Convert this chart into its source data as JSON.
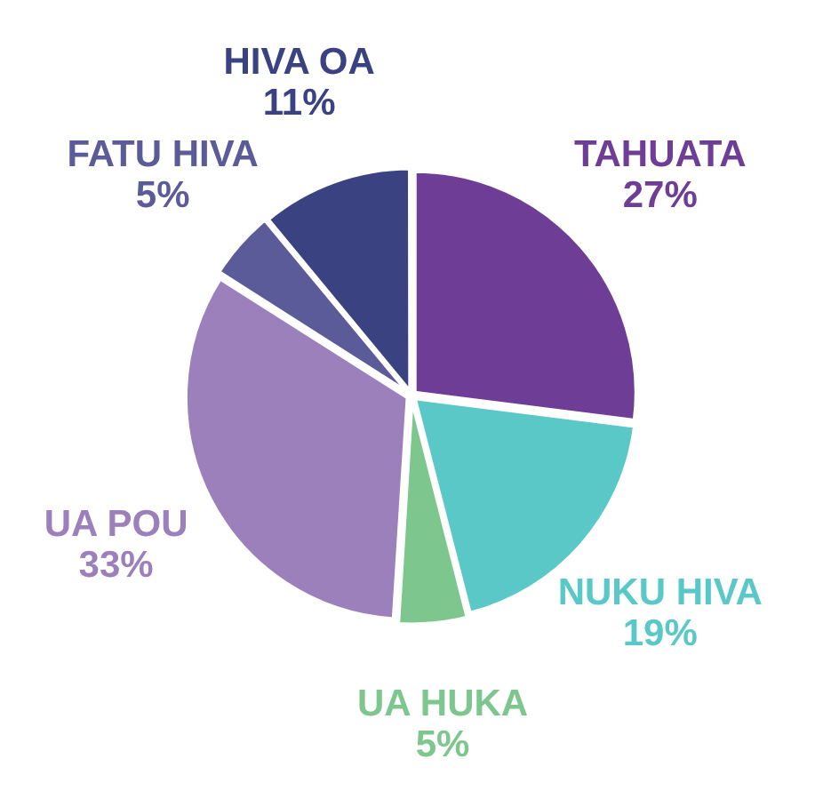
{
  "chart_data": {
    "type": "pie",
    "categories": [
      "TAHUATA",
      "NUKU HIVA",
      "UA HUKA",
      "UA POU",
      "FATU HIVA",
      "HIVA OA"
    ],
    "values": [
      27,
      19,
      5,
      33,
      5,
      11
    ],
    "value_labels": [
      "27%",
      "19%",
      "5%",
      "33%",
      "5%",
      "11%"
    ],
    "colors": [
      "#6e3d96",
      "#5bc8c8",
      "#7dc78f",
      "#9b80bb",
      "#5b5b9a",
      "#3a4282"
    ],
    "legend": false
  }
}
